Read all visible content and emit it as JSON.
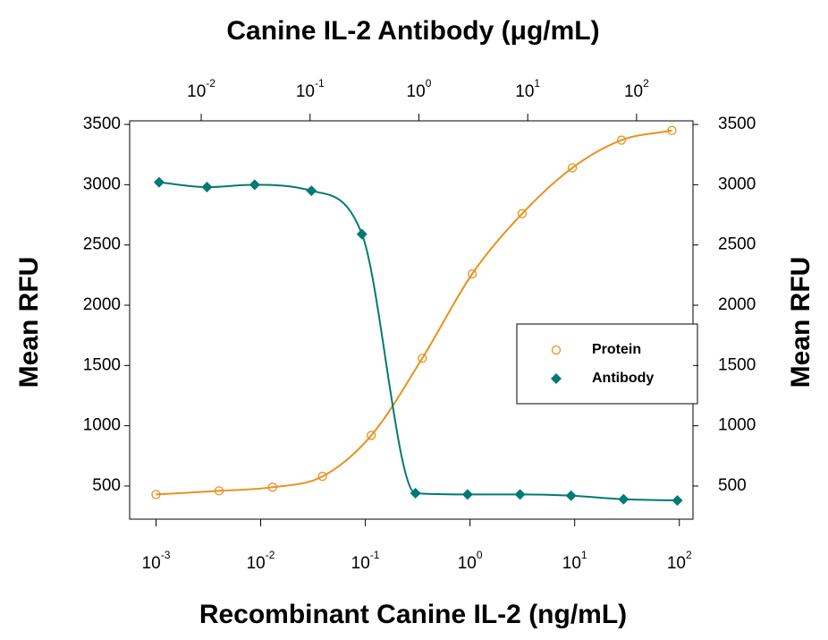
{
  "chart_data": {
    "type": "scatter",
    "x2_label": "Canine IL-2 Antibody (μg/mL)",
    "x_label": "Recombinant Canine IL-2 (ng/mL)",
    "y_label": "Mean RFU",
    "y2_label": "Mean RFU",
    "xscale": "log",
    "x2scale": "log",
    "xlim": [
      0.00056,
      135
    ],
    "x2lim": [
      0.0022,
      330
    ],
    "ylim": [
      225,
      3530
    ],
    "xticks": [
      {
        "value": 0.001,
        "label": "10",
        "sup": "-3"
      },
      {
        "value": 0.01,
        "label": "10",
        "sup": "-2"
      },
      {
        "value": 0.1,
        "label": "10",
        "sup": "-1"
      },
      {
        "value": 1,
        "label": "10",
        "sup": "0"
      },
      {
        "value": 10,
        "label": "10",
        "sup": "1"
      },
      {
        "value": 100,
        "label": "10",
        "sup": "2"
      }
    ],
    "x2ticks": [
      {
        "value": 0.01,
        "label": "10",
        "sup": "-2"
      },
      {
        "value": 0.1,
        "label": "10",
        "sup": "-1"
      },
      {
        "value": 1,
        "label": "10",
        "sup": "0"
      },
      {
        "value": 10,
        "label": "10",
        "sup": "1"
      },
      {
        "value": 100,
        "label": "10",
        "sup": "2"
      }
    ],
    "yticks": [
      500,
      1000,
      1500,
      2000,
      2500,
      3000,
      3500
    ],
    "legend": "right",
    "series": [
      {
        "name": "Protein",
        "color": "#e8921e",
        "marker": "circle-open",
        "xaxis": "x",
        "x": [
          0.001,
          0.004,
          0.013,
          0.039,
          0.114,
          0.35,
          1.05,
          3.15,
          9.5,
          28,
          85
        ],
        "values": [
          430,
          460,
          490,
          580,
          920,
          1560,
          2260,
          2760,
          3140,
          3370,
          3450
        ]
      },
      {
        "name": "Antibody",
        "color": "#007a73",
        "marker": "diamond",
        "xaxis": "x2",
        "x": [
          0.0041,
          0.0113,
          0.031,
          0.103,
          0.3,
          0.93,
          2.8,
          8.5,
          25,
          76,
          237
        ],
        "values": [
          3020,
          2980,
          3000,
          2950,
          2590,
          440,
          430,
          430,
          420,
          390,
          380
        ]
      }
    ]
  }
}
